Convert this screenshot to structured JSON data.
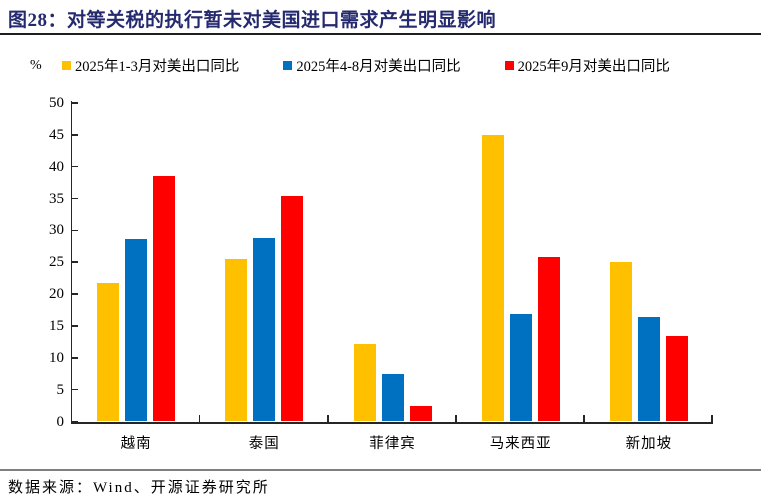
{
  "header": {
    "title": "图28：对等关税的执行暂未对美国进口需求产生明显影响"
  },
  "colors": {
    "title": "#252a6e",
    "axis": "#262626",
    "top_rule": "#1f1f1f",
    "bottom_rule": "#7f7f7f"
  },
  "chart_data": {
    "type": "bar",
    "title": "对等关税的执行暂未对美国进口需求产生明显影响",
    "unit": "%",
    "categories": [
      "越南",
      "泰国",
      "菲律宾",
      "马来西亚",
      "新加坡"
    ],
    "series": [
      {
        "name": "2025年1-3月对美出口同比",
        "color": "#FFC000",
        "values": [
          21.8,
          25.5,
          12.2,
          45.0,
          25.1
        ]
      },
      {
        "name": "2025年4-8月对美出口同比",
        "color": "#0070C0",
        "values": [
          28.7,
          28.8,
          7.4,
          16.8,
          16.4
        ]
      },
      {
        "name": "2025年9月对美出口同比",
        "color": "#FF0000",
        "values": [
          38.6,
          35.4,
          2.5,
          25.8,
          13.4
        ]
      }
    ],
    "xlabel": "",
    "ylabel": "%",
    "ylim": [
      0,
      50
    ],
    "yticks": [
      0,
      5,
      10,
      15,
      20,
      25,
      30,
      35,
      40,
      45,
      50
    ],
    "grid": false,
    "legend_position": "top"
  },
  "footer": {
    "source": "数据来源：Wind、开源证券研究所"
  }
}
